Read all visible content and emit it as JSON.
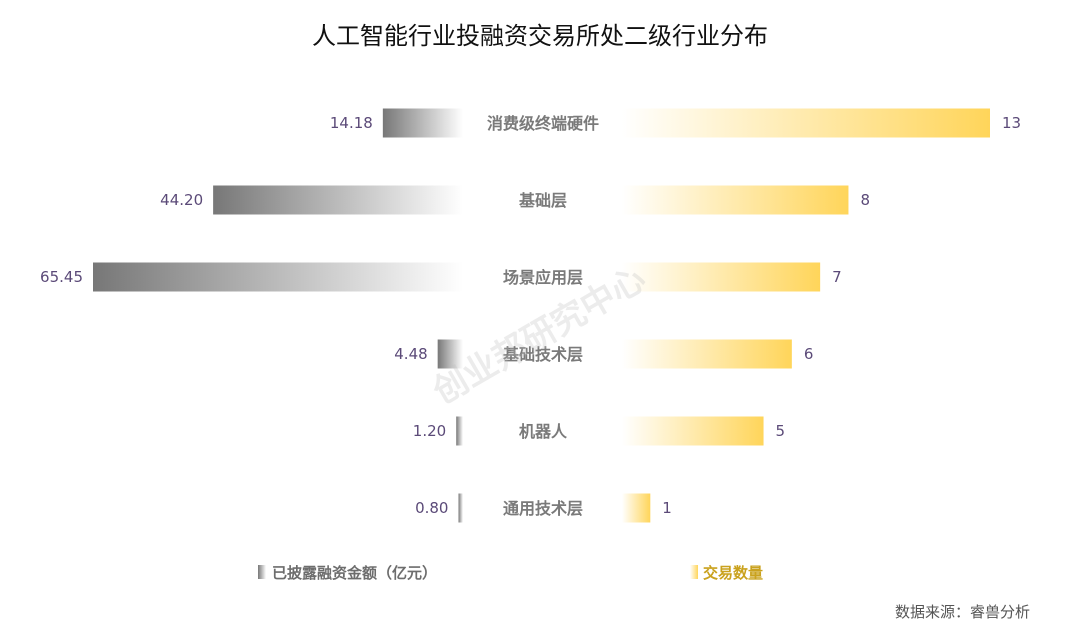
{
  "chart_data": {
    "type": "bar",
    "title": "人工智能行业投融资交易所处二级行业分布",
    "categories": [
      "消费级终端硬件",
      "基础层",
      "场景应用层",
      "基础技术层",
      "机器人",
      "通用技术层"
    ],
    "series": [
      {
        "name": "已披露融资金额（亿元）",
        "side": "left",
        "color": "#7a7a7a",
        "values": [
          14.18,
          44.2,
          65.45,
          4.48,
          1.2,
          0.8
        ],
        "labels": [
          "14.18",
          "44.20",
          "65.45",
          "4.48",
          "1.20",
          "0.80"
        ]
      },
      {
        "name": "交易数量",
        "side": "right",
        "color": "#ffd55a",
        "values": [
          13,
          8,
          7,
          6,
          5,
          1
        ],
        "labels": [
          "13",
          "8",
          "7",
          "6",
          "5",
          "1"
        ]
      }
    ],
    "legend_placement": "bottom",
    "grid": false
  },
  "watermark": "创业邦研究中心",
  "source": "数据来源：睿兽分析"
}
